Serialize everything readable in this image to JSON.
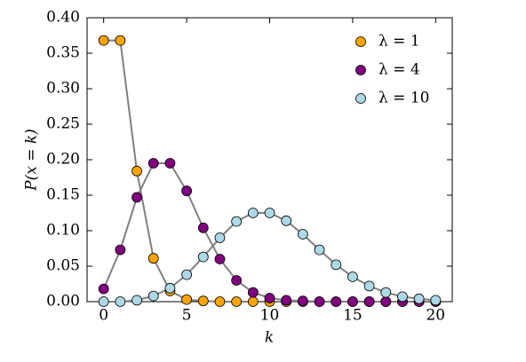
{
  "chart_data": {
    "type": "line",
    "xlabel": "k",
    "ylabel": "P(x = k)",
    "x": [
      0,
      1,
      2,
      3,
      4,
      5,
      6,
      7,
      8,
      9,
      10,
      11,
      12,
      13,
      14,
      15,
      16,
      17,
      18,
      19,
      20
    ],
    "series": [
      {
        "name": "λ = 1",
        "color": "#ffa500",
        "values": [
          0.368,
          0.368,
          0.184,
          0.061,
          0.015,
          0.003,
          0.001,
          0,
          0,
          0,
          0,
          0,
          0,
          0,
          0,
          0,
          0,
          0,
          0,
          0,
          0
        ]
      },
      {
        "name": "λ = 4",
        "color": "#800080",
        "values": [
          0.018,
          0.073,
          0.147,
          0.195,
          0.195,
          0.156,
          0.104,
          0.06,
          0.03,
          0.013,
          0.005,
          0.002,
          0.001,
          0,
          0,
          0,
          0,
          0,
          0,
          0,
          0
        ]
      },
      {
        "name": "λ = 10",
        "color": "#add8e6",
        "values": [
          0,
          0,
          0.002,
          0.008,
          0.019,
          0.038,
          0.063,
          0.09,
          0.113,
          0.125,
          0.125,
          0.114,
          0.095,
          0.073,
          0.052,
          0.035,
          0.022,
          0.013,
          0.007,
          0.004,
          0.002
        ]
      }
    ],
    "line_color": "#808080",
    "xlim": [
      -1,
      21
    ],
    "xticks": [
      0,
      5,
      10,
      15,
      20
    ],
    "ylim": [
      0,
      0.4
    ],
    "yticks": [
      {
        "value": 0,
        "label": "0.00"
      },
      {
        "value": 0.05,
        "label": "0.05"
      },
      {
        "value": 0.1,
        "label": "0.10"
      },
      {
        "value": 0.15,
        "label": "0.15"
      },
      {
        "value": 0.2,
        "label": "0.20"
      },
      {
        "value": 0.25,
        "label": "0.25"
      },
      {
        "value": 0.3,
        "label": "0.30"
      },
      {
        "value": 0.35,
        "label": "0.35"
      },
      {
        "value": 0.4,
        "label": "0.40"
      }
    ],
    "legend": "upper right"
  }
}
